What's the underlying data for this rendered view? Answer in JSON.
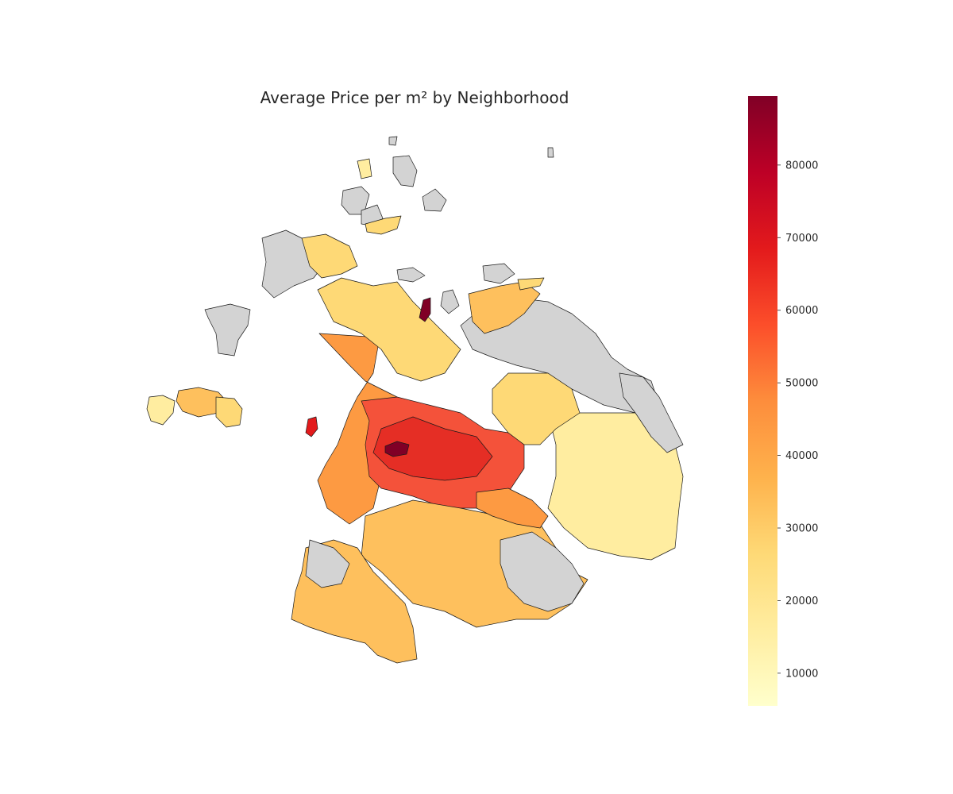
{
  "chart_data": {
    "type": "choropleth",
    "title": "Average Price per m² by Neighborhood",
    "missing_color": "#d3d3d3",
    "colormap": "YlOrRd",
    "colorbar": {
      "min": 5500,
      "max": 89500,
      "ticks": [
        10000,
        20000,
        30000,
        40000,
        50000,
        60000,
        70000,
        80000
      ],
      "tick_labels": [
        "10000",
        "20000",
        "30000",
        "40000",
        "50000",
        "60000",
        "70000",
        "80000"
      ]
    },
    "grid": false,
    "axes_visible": false
  }
}
